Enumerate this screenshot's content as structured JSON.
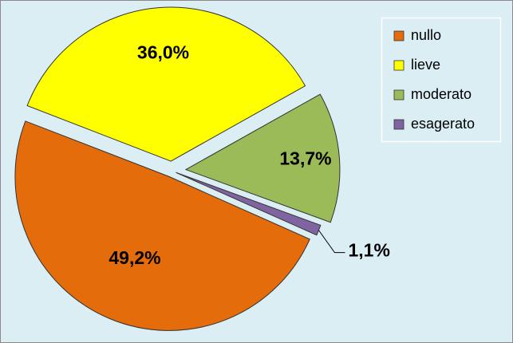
{
  "chart_data": {
    "type": "pie",
    "categories": [
      "nullo",
      "lieve",
      "moderato",
      "esagerato"
    ],
    "values": [
      49.2,
      36.0,
      13.7,
      1.1
    ],
    "value_labels": [
      "49,2%",
      "36,0%",
      "13,7%",
      "1,1%"
    ],
    "colors": [
      "#e46c0a",
      "#ffff00",
      "#9bbb59",
      "#8064a2"
    ],
    "legend": "right"
  }
}
